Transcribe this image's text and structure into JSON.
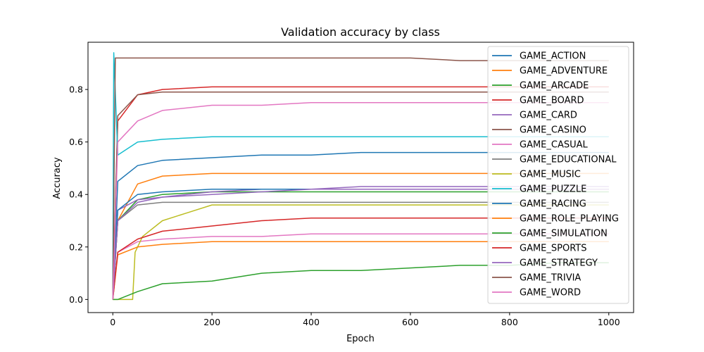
{
  "chart_data": {
    "type": "line",
    "title": "Validation accuracy by class",
    "xlabel": "Epoch",
    "ylabel": "Accuracy",
    "xlim": [
      -50,
      1050
    ],
    "ylim": [
      -0.05,
      0.98
    ],
    "xticks": [
      0,
      200,
      400,
      600,
      800,
      1000
    ],
    "yticks": [
      0.0,
      0.2,
      0.4,
      0.6,
      0.8
    ],
    "legend": "upper right",
    "grid": false,
    "series": [
      {
        "name": "GAME_ACTION",
        "color": "#1f77b4",
        "x": [
          0,
          10,
          50,
          100,
          200,
          300,
          400,
          500,
          600,
          700,
          800,
          900,
          1000
        ],
        "y": [
          0.0,
          0.45,
          0.51,
          0.53,
          0.54,
          0.55,
          0.55,
          0.56,
          0.56,
          0.56,
          0.56,
          0.56,
          0.56
        ]
      },
      {
        "name": "GAME_ADVENTURE",
        "color": "#ff7f0e",
        "x": [
          0,
          10,
          50,
          100,
          200,
          300,
          400,
          500,
          600,
          700,
          800,
          900,
          1000
        ],
        "y": [
          0.0,
          0.3,
          0.44,
          0.47,
          0.48,
          0.48,
          0.48,
          0.48,
          0.48,
          0.48,
          0.48,
          0.48,
          0.48
        ]
      },
      {
        "name": "GAME_ARCADE",
        "color": "#2ca02c",
        "x": [
          0,
          10,
          50,
          100,
          200,
          300,
          400,
          500,
          600,
          700,
          800,
          900,
          1000
        ],
        "y": [
          0.0,
          0.3,
          0.38,
          0.4,
          0.41,
          0.41,
          0.41,
          0.41,
          0.41,
          0.41,
          0.41,
          0.41,
          0.41
        ]
      },
      {
        "name": "GAME_BOARD",
        "color": "#d62728",
        "x": [
          0,
          10,
          50,
          100,
          200,
          300,
          400,
          500,
          600,
          700,
          800,
          900,
          1000
        ],
        "y": [
          0.0,
          0.68,
          0.78,
          0.8,
          0.81,
          0.81,
          0.81,
          0.81,
          0.81,
          0.81,
          0.81,
          0.81,
          0.81
        ]
      },
      {
        "name": "GAME_CARD",
        "color": "#9467bd",
        "x": [
          0,
          10,
          50,
          100,
          200,
          300,
          400,
          500,
          600,
          700,
          800,
          900,
          1000
        ],
        "y": [
          0.0,
          0.34,
          0.38,
          0.39,
          0.41,
          0.42,
          0.42,
          0.43,
          0.43,
          0.43,
          0.43,
          0.43,
          0.43
        ]
      },
      {
        "name": "GAME_CASINO",
        "color": "#8c564b",
        "x": [
          0,
          10,
          50,
          100,
          200,
          300,
          400,
          500,
          600,
          700,
          800,
          900,
          1000
        ],
        "y": [
          0.0,
          0.7,
          0.78,
          0.79,
          0.79,
          0.79,
          0.79,
          0.79,
          0.79,
          0.79,
          0.79,
          0.79,
          0.79
        ]
      },
      {
        "name": "GAME_CASUAL",
        "color": "#e377c2",
        "x": [
          0,
          10,
          50,
          100,
          200,
          300,
          400,
          500,
          600,
          700,
          800,
          900,
          1000
        ],
        "y": [
          0.0,
          0.18,
          0.22,
          0.23,
          0.24,
          0.24,
          0.25,
          0.25,
          0.25,
          0.25,
          0.25,
          0.25,
          0.25
        ]
      },
      {
        "name": "GAME_EDUCATIONAL",
        "color": "#7f7f7f",
        "x": [
          0,
          10,
          50,
          100,
          200,
          300,
          400,
          500,
          600,
          700,
          800,
          900,
          1000
        ],
        "y": [
          0.0,
          0.3,
          0.36,
          0.37,
          0.37,
          0.37,
          0.37,
          0.37,
          0.37,
          0.37,
          0.37,
          0.37,
          0.37
        ]
      },
      {
        "name": "GAME_MUSIC",
        "color": "#bcbd22",
        "x": [
          0,
          40,
          45,
          60,
          100,
          150,
          200,
          300,
          400,
          500,
          600,
          700,
          800,
          900,
          1000
        ],
        "y": [
          0.0,
          0.0,
          0.18,
          0.24,
          0.3,
          0.33,
          0.36,
          0.36,
          0.36,
          0.36,
          0.36,
          0.36,
          0.36,
          0.36,
          0.36
        ]
      },
      {
        "name": "GAME_PUZZLE",
        "color": "#17becf",
        "x": [
          0,
          2,
          10,
          50,
          100,
          200,
          300,
          400,
          500,
          600,
          700,
          800,
          900,
          1000
        ],
        "y": [
          0.0,
          0.94,
          0.55,
          0.6,
          0.61,
          0.62,
          0.62,
          0.62,
          0.62,
          0.62,
          0.62,
          0.62,
          0.62,
          0.62
        ]
      },
      {
        "name": "GAME_RACING",
        "color": "#1f77b4",
        "x": [
          0,
          10,
          50,
          100,
          200,
          300,
          400,
          500,
          600,
          700,
          800,
          900,
          1000
        ],
        "y": [
          0.0,
          0.34,
          0.4,
          0.41,
          0.42,
          0.42,
          0.42,
          0.42,
          0.42,
          0.42,
          0.42,
          0.42,
          0.42
        ]
      },
      {
        "name": "GAME_ROLE_PLAYING",
        "color": "#ff7f0e",
        "x": [
          0,
          10,
          50,
          100,
          200,
          300,
          400,
          500,
          600,
          700,
          800,
          900,
          1000
        ],
        "y": [
          0.0,
          0.17,
          0.2,
          0.21,
          0.22,
          0.22,
          0.22,
          0.22,
          0.22,
          0.22,
          0.22,
          0.22,
          0.22
        ]
      },
      {
        "name": "GAME_SIMULATION",
        "color": "#2ca02c",
        "x": [
          0,
          10,
          50,
          100,
          200,
          300,
          400,
          500,
          600,
          700,
          800,
          900,
          1000
        ],
        "y": [
          0.0,
          0.0,
          0.03,
          0.06,
          0.07,
          0.1,
          0.11,
          0.11,
          0.12,
          0.13,
          0.13,
          0.14,
          0.14
        ]
      },
      {
        "name": "GAME_SPORTS",
        "color": "#d62728",
        "x": [
          0,
          10,
          50,
          100,
          200,
          300,
          400,
          500,
          600,
          700,
          800,
          900,
          1000
        ],
        "y": [
          0.0,
          0.18,
          0.23,
          0.26,
          0.28,
          0.3,
          0.31,
          0.31,
          0.31,
          0.31,
          0.31,
          0.31,
          0.31
        ]
      },
      {
        "name": "GAME_STRATEGY",
        "color": "#9467bd",
        "x": [
          0,
          10,
          50,
          100,
          200,
          300,
          400,
          500,
          600,
          700,
          800,
          900,
          1000
        ],
        "y": [
          0.0,
          0.3,
          0.37,
          0.39,
          0.4,
          0.41,
          0.42,
          0.42,
          0.42,
          0.42,
          0.42,
          0.42,
          0.42
        ]
      },
      {
        "name": "GAME_TRIVIA",
        "color": "#8c564b",
        "x": [
          0,
          5,
          10,
          50,
          100,
          200,
          300,
          400,
          500,
          600,
          700,
          800,
          900,
          1000
        ],
        "y": [
          0.0,
          0.92,
          0.92,
          0.92,
          0.92,
          0.92,
          0.92,
          0.92,
          0.92,
          0.92,
          0.91,
          0.91,
          0.91,
          0.91
        ]
      },
      {
        "name": "GAME_WORD",
        "color": "#e377c2",
        "x": [
          0,
          10,
          50,
          100,
          200,
          300,
          400,
          500,
          600,
          700,
          800,
          900,
          1000
        ],
        "y": [
          0.0,
          0.6,
          0.68,
          0.72,
          0.74,
          0.74,
          0.75,
          0.75,
          0.75,
          0.75,
          0.75,
          0.75,
          0.75
        ]
      }
    ]
  }
}
